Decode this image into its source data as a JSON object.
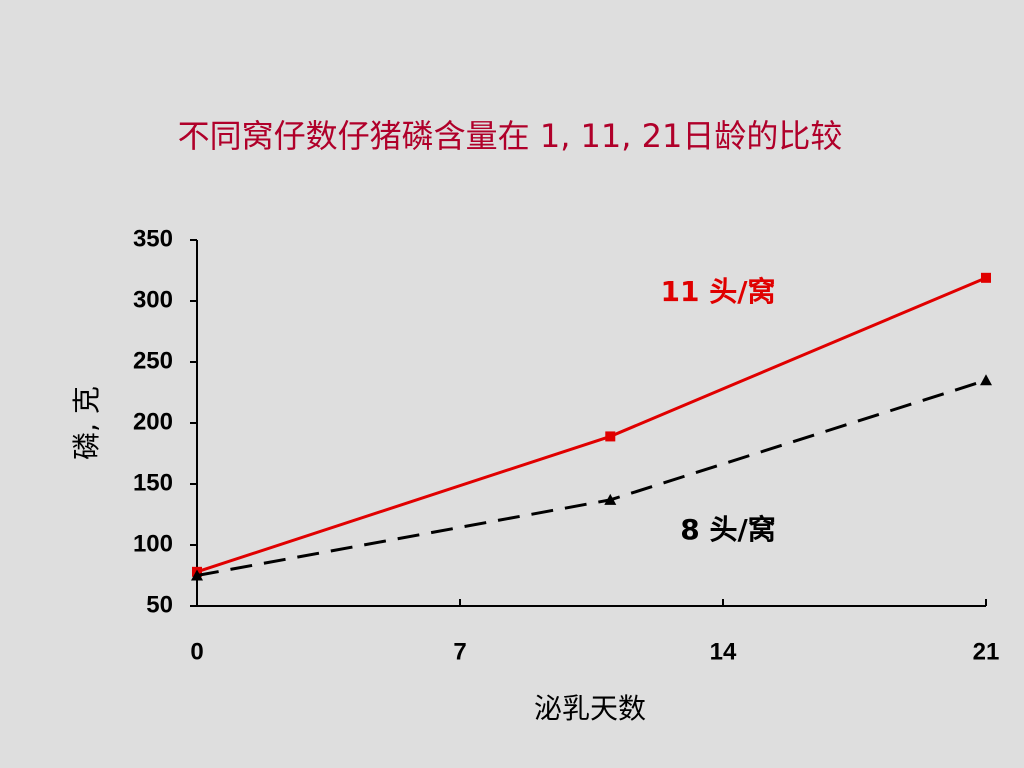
{
  "chart_data": {
    "type": "line",
    "title": "不同窝仔数仔猪磷含量在 1, 11, 21日龄的比较",
    "x_label": "泌乳天数",
    "y_label": "磷, 克",
    "x": [
      0,
      11,
      21
    ],
    "series": [
      {
        "name": "11 头/窝",
        "color": "#e00000",
        "values": [
          78,
          189,
          319
        ],
        "line": "solid",
        "marker": "square"
      },
      {
        "name": "8 头/窝",
        "color": "#000000",
        "values": [
          75,
          137,
          235
        ],
        "line": "dashed",
        "marker": "triangle"
      }
    ],
    "xlim": [
      0,
      21
    ],
    "xticks": [
      0,
      7,
      14,
      21
    ],
    "ylim": [
      50,
      350
    ],
    "yticks": [
      50,
      100,
      150,
      200,
      250,
      300,
      350
    ]
  }
}
